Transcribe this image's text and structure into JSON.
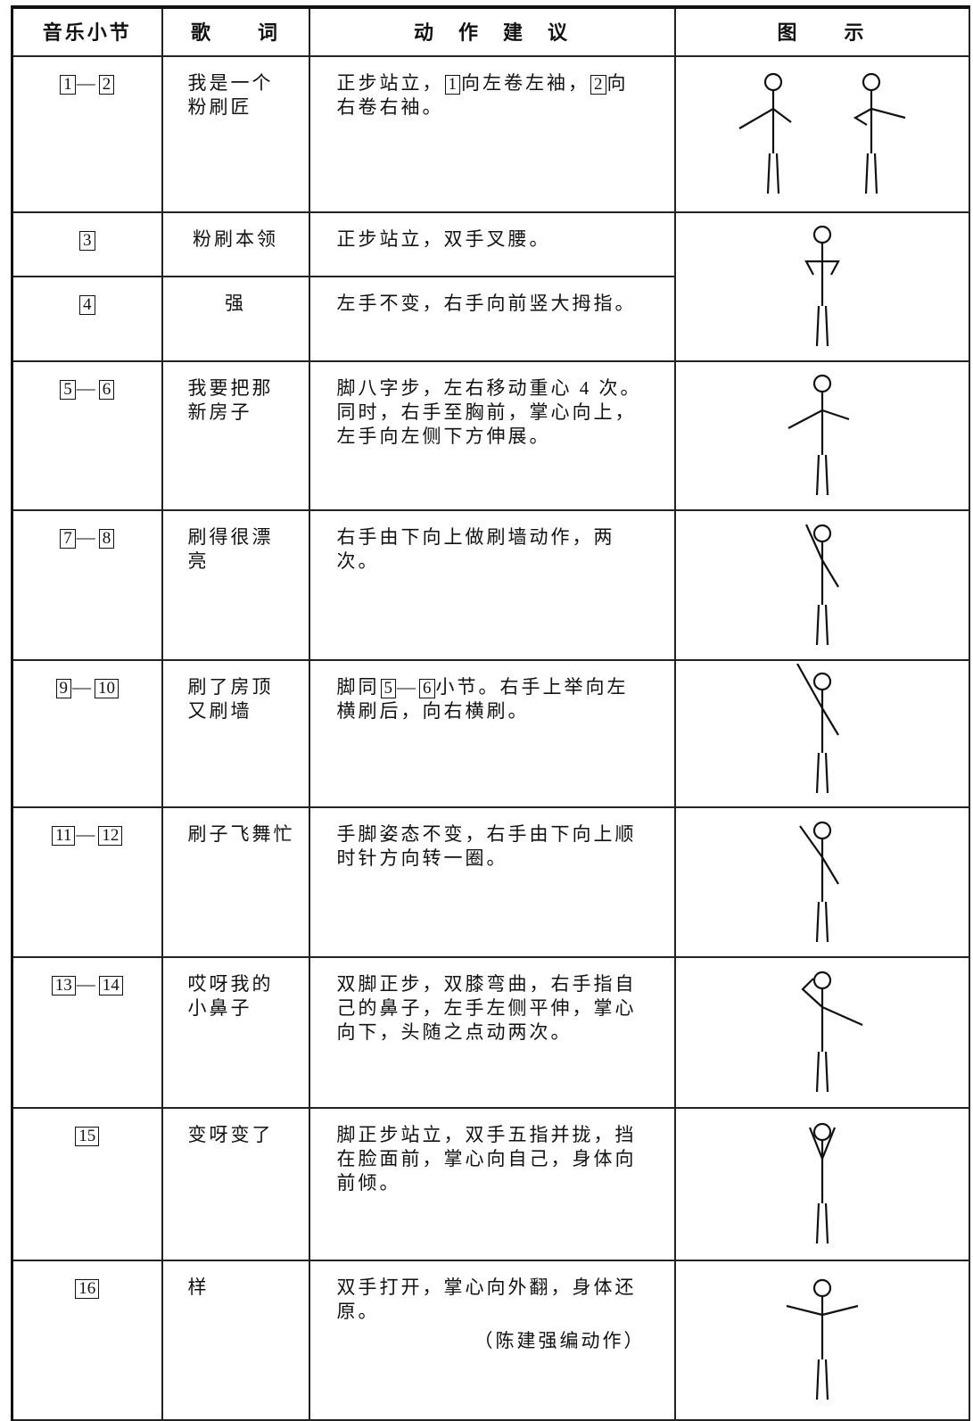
{
  "table": {
    "header": [
      "音乐小节",
      "歌　　词",
      "动　作　建　议",
      "图　　示"
    ],
    "range_sep": "—",
    "rows": [
      {
        "measure": [
          "1",
          "2"
        ],
        "lyric": [
          "我是一个",
          "粉刷匠"
        ],
        "action": [
          {
            "text": "正步站立，"
          },
          {
            "box": "1"
          },
          {
            "text": "向左卷左袖，"
          },
          {
            "box": "2"
          },
          {
            "text": "向右卷右袖。"
          }
        ]
      },
      {
        "measure": [
          "3"
        ],
        "lyric": [
          "粉刷本领"
        ],
        "action": [
          {
            "text": "正步站立，双手叉腰。"
          }
        ]
      },
      {
        "measure": [
          "4"
        ],
        "lyric": [
          "强"
        ],
        "action": [
          {
            "text": "左手不变，右手向前竖大拇指。"
          }
        ]
      },
      {
        "measure": [
          "5",
          "6"
        ],
        "lyric": [
          "我要把那",
          "新房子"
        ],
        "action": [
          {
            "text": "脚八字步，左右移动重心 4 次。同时，右手至胸前，掌心向上，左手向左侧下方伸展。"
          }
        ]
      },
      {
        "measure": [
          "7",
          "8"
        ],
        "lyric": [
          "刷得很漂",
          "亮"
        ],
        "action": [
          {
            "text": "右手由下向上做刷墙动作，两次。"
          }
        ]
      },
      {
        "measure": [
          "9",
          "10"
        ],
        "lyric": [
          "刷了房顶",
          "又刷墙"
        ],
        "action": [
          {
            "text": "脚同"
          },
          {
            "box": "5"
          },
          {
            "text": "—"
          },
          {
            "box": "6"
          },
          {
            "text": "小节。右手上举向左横刷后，向右横刷。"
          }
        ]
      },
      {
        "measure": [
          "11",
          "12"
        ],
        "lyric": [
          "刷子飞舞忙"
        ],
        "action": [
          {
            "text": "手脚姿态不变，右手由下向上顺时针方向转一圈。"
          }
        ]
      },
      {
        "measure": [
          "13",
          "14"
        ],
        "lyric": [
          "哎呀我的",
          "小鼻子"
        ],
        "action": [
          {
            "text": "双脚正步，双膝弯曲，右手指自己的鼻子，左手左侧平伸，掌心向下，头随之点动两次。"
          }
        ]
      },
      {
        "measure": [
          "15"
        ],
        "lyric": [
          "变呀变了"
        ],
        "action": [
          {
            "text": "脚正步站立，双手五指并拢，挡在脸面前，掌心向自己，身体向前倾。"
          }
        ]
      },
      {
        "measure": [
          "16"
        ],
        "lyric": [
          "样"
        ],
        "action": [
          {
            "text": "双手打开，掌心向外翻，身体还原。"
          }
        ],
        "note": "（陈建强编动作）"
      }
    ]
  }
}
